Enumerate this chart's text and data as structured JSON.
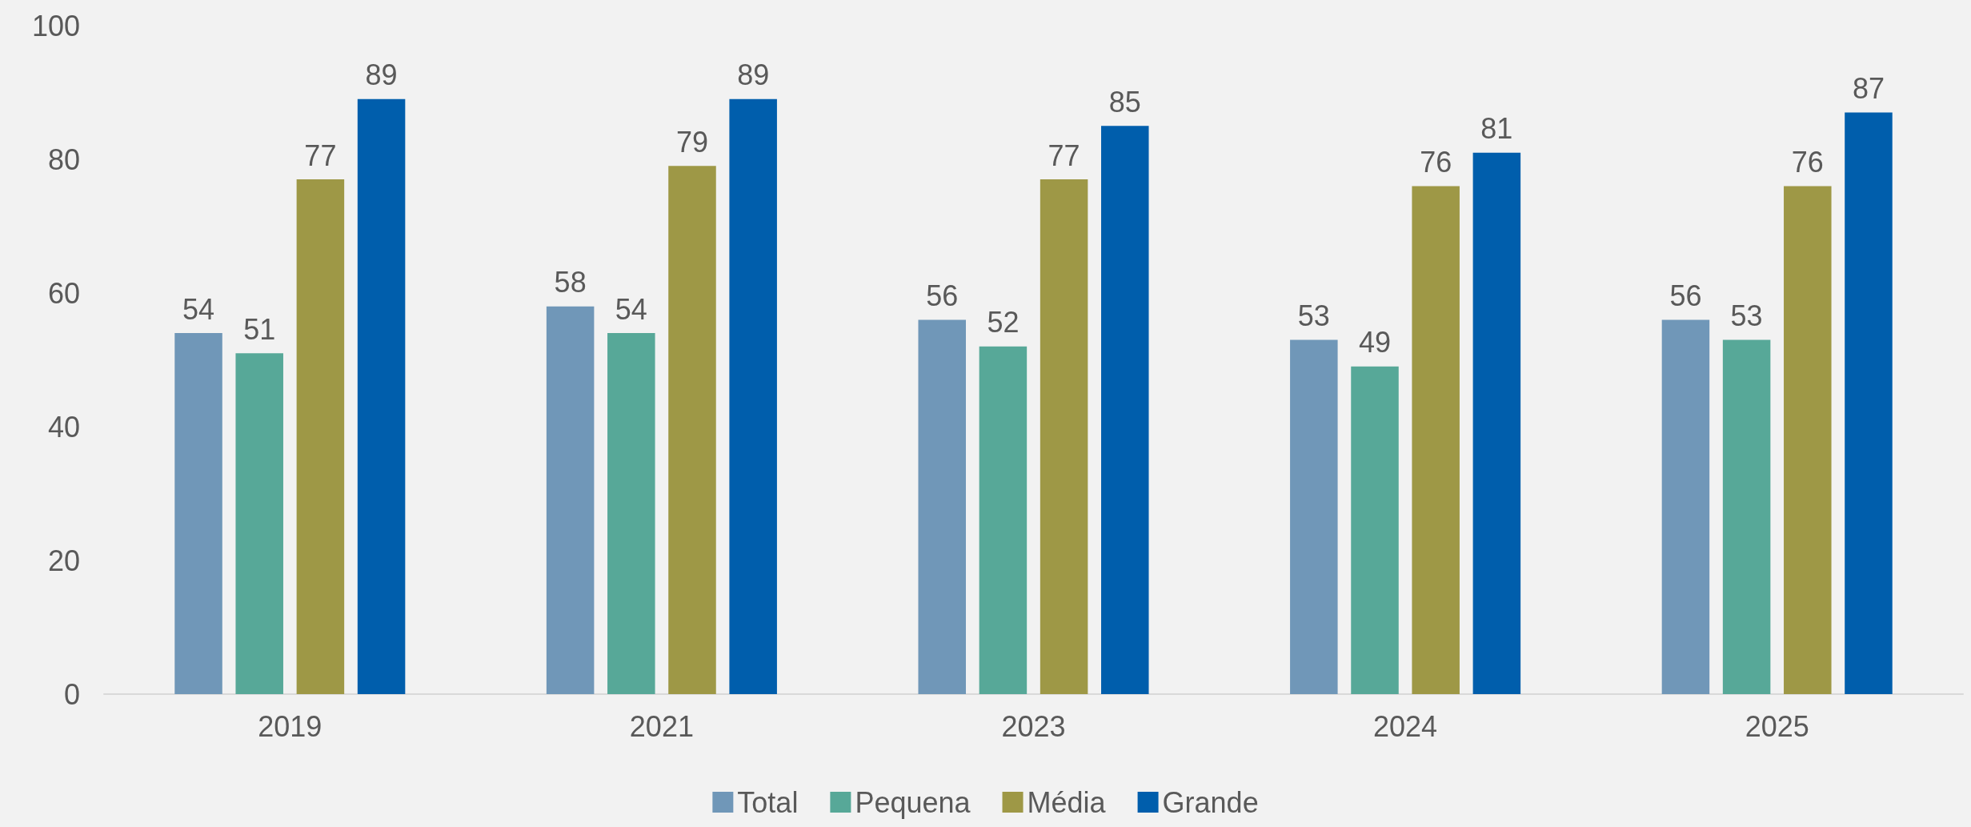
{
  "chart_data": {
    "type": "bar",
    "categories": [
      "2019",
      "2021",
      "2023",
      "2024",
      "2025"
    ],
    "series": [
      {
        "name": "Total",
        "color": "#7097b8",
        "values": [
          54,
          58,
          56,
          53,
          56
        ]
      },
      {
        "name": "Pequena",
        "color": "#57a898",
        "values": [
          51,
          54,
          52,
          49,
          53
        ]
      },
      {
        "name": "Média",
        "color": "#9e9846",
        "values": [
          77,
          79,
          77,
          76,
          76
        ]
      },
      {
        "name": "Grande",
        "color": "#005eac",
        "values": [
          89,
          89,
          85,
          81,
          87
        ]
      }
    ],
    "ylim": [
      0,
      100
    ],
    "yticks": [
      0,
      20,
      40,
      60,
      80,
      100
    ],
    "grid": false,
    "legend": "bottom",
    "data_labels": true
  }
}
